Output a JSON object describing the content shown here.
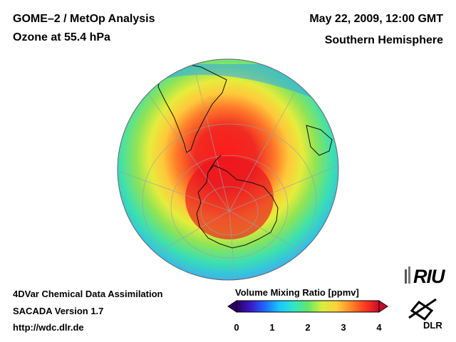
{
  "header": {
    "title": "GOME–2 / MetOp Analysis",
    "subtitle": "Ozone at 55.4 hPa",
    "date": "May 22, 2009, 12:00 GMT",
    "region": "Southern Hemisphere"
  },
  "footer": {
    "line1": "4DVar Chemical Data Assimilation",
    "line2": "SACADA Version 1.7",
    "url": "http://wdc.dlr.de"
  },
  "colorbar": {
    "title": "Volume Mixing Ratio [ppmv]",
    "min": 0,
    "max": 4,
    "ticks": [
      "0",
      "1",
      "2",
      "3",
      "4"
    ],
    "colors": [
      "#2b0063",
      "#3a18c8",
      "#1e6bff",
      "#19c6ff",
      "#2fe7c8",
      "#63e66a",
      "#d8ee3e",
      "#ffd13a",
      "#ff8a28",
      "#ff3a22",
      "#c80a2a"
    ]
  },
  "logos": {
    "riu": "RIU",
    "dlr": "DLR"
  }
}
